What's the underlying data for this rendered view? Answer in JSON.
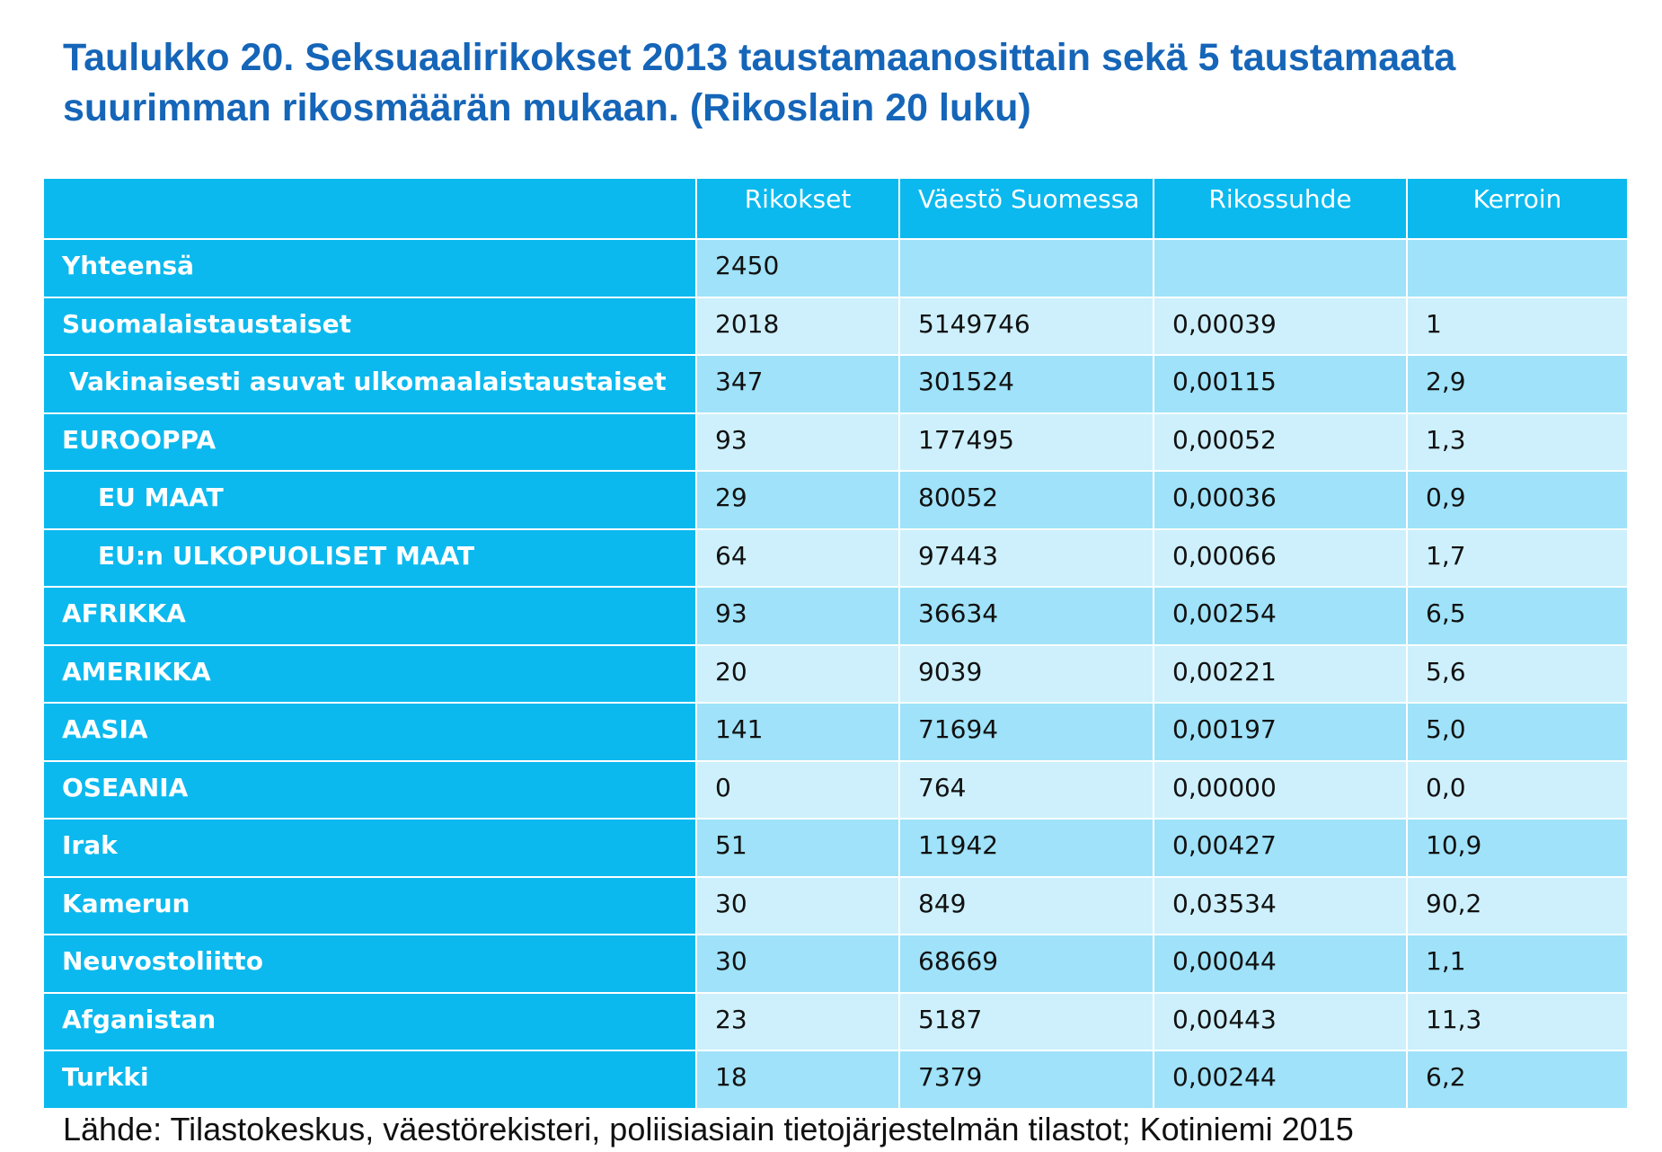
{
  "title": "Taulukko 20. Seksuaalirikokset 2013 taustamaanosittain sekä 5 taustamaata suurimman rikosmäärän mukaan. (Rikoslain 20 luku)",
  "columns": [
    "",
    "Rikokset",
    "Väestö Suomessa",
    "Rikossuhde",
    "Kerroin"
  ],
  "rows": [
    {
      "label": "Yhteensä",
      "indent": 0,
      "rikokset": "2450",
      "vaesto": "",
      "rikossuhde": "",
      "kerroin": ""
    },
    {
      "label": "Suomalaistaustaiset",
      "indent": 0,
      "rikokset": "2018",
      "vaesto": "5149746",
      "rikossuhde": "0,00039",
      "kerroin": "1"
    },
    {
      "label": "Vakinaisesti asuvat ulkomaalaistaustaiset",
      "indent": 1,
      "rikokset": "347",
      "vaesto": "301524",
      "rikossuhde": "0,00115",
      "kerroin": "2,9"
    },
    {
      "label": "EUROOPPA",
      "indent": 0,
      "rikokset": "93",
      "vaesto": "177495",
      "rikossuhde": "0,00052",
      "kerroin": "1,3"
    },
    {
      "label": "EU MAAT",
      "indent": 2,
      "rikokset": "29",
      "vaesto": "80052",
      "rikossuhde": "0,00036",
      "kerroin": "0,9"
    },
    {
      "label": "EU:n ULKOPUOLISET MAAT",
      "indent": 2,
      "rikokset": "64",
      "vaesto": "97443",
      "rikossuhde": "0,00066",
      "kerroin": "1,7"
    },
    {
      "label": "AFRIKKA",
      "indent": 0,
      "rikokset": "93",
      "vaesto": "36634",
      "rikossuhde": "0,00254",
      "kerroin": "6,5"
    },
    {
      "label": "AMERIKKA",
      "indent": 0,
      "rikokset": "20",
      "vaesto": "9039",
      "rikossuhde": "0,00221",
      "kerroin": "5,6"
    },
    {
      "label": "AASIA",
      "indent": 0,
      "rikokset": "141",
      "vaesto": "71694",
      "rikossuhde": "0,00197",
      "kerroin": "5,0"
    },
    {
      "label": "OSEANIA",
      "indent": 0,
      "rikokset": "0",
      "vaesto": "764",
      "rikossuhde": "0,00000",
      "kerroin": "0,0"
    },
    {
      "label": "Irak",
      "indent": 0,
      "rikokset": "51",
      "vaesto": "11942",
      "rikossuhde": "0,00427",
      "kerroin": "10,9"
    },
    {
      "label": "Kamerun",
      "indent": 0,
      "rikokset": "30",
      "vaesto": "849",
      "rikossuhde": "0,03534",
      "kerroin": "90,2"
    },
    {
      "label": "Neuvostoliitto",
      "indent": 0,
      "rikokset": "30",
      "vaesto": "68669",
      "rikossuhde": "0,00044",
      "kerroin": "1,1"
    },
    {
      "label": "Afganistan",
      "indent": 0,
      "rikokset": "23",
      "vaesto": "5187",
      "rikossuhde": "0,00443",
      "kerroin": "11,3"
    },
    {
      "label": "Turkki",
      "indent": 0,
      "rikokset": "18",
      "vaesto": "7379",
      "rikossuhde": "0,00244",
      "kerroin": "6,2"
    }
  ],
  "source": "Lähde: Tilastokeskus, väestörekisteri, poliisiasiain tietojärjestelmän tilastot; Kotiniemi 2015",
  "colors": {
    "title": "#1565b8",
    "header_bg": "#0bb9ee",
    "row_dark": "#9fe2f9",
    "row_light": "#cdf0fc"
  }
}
